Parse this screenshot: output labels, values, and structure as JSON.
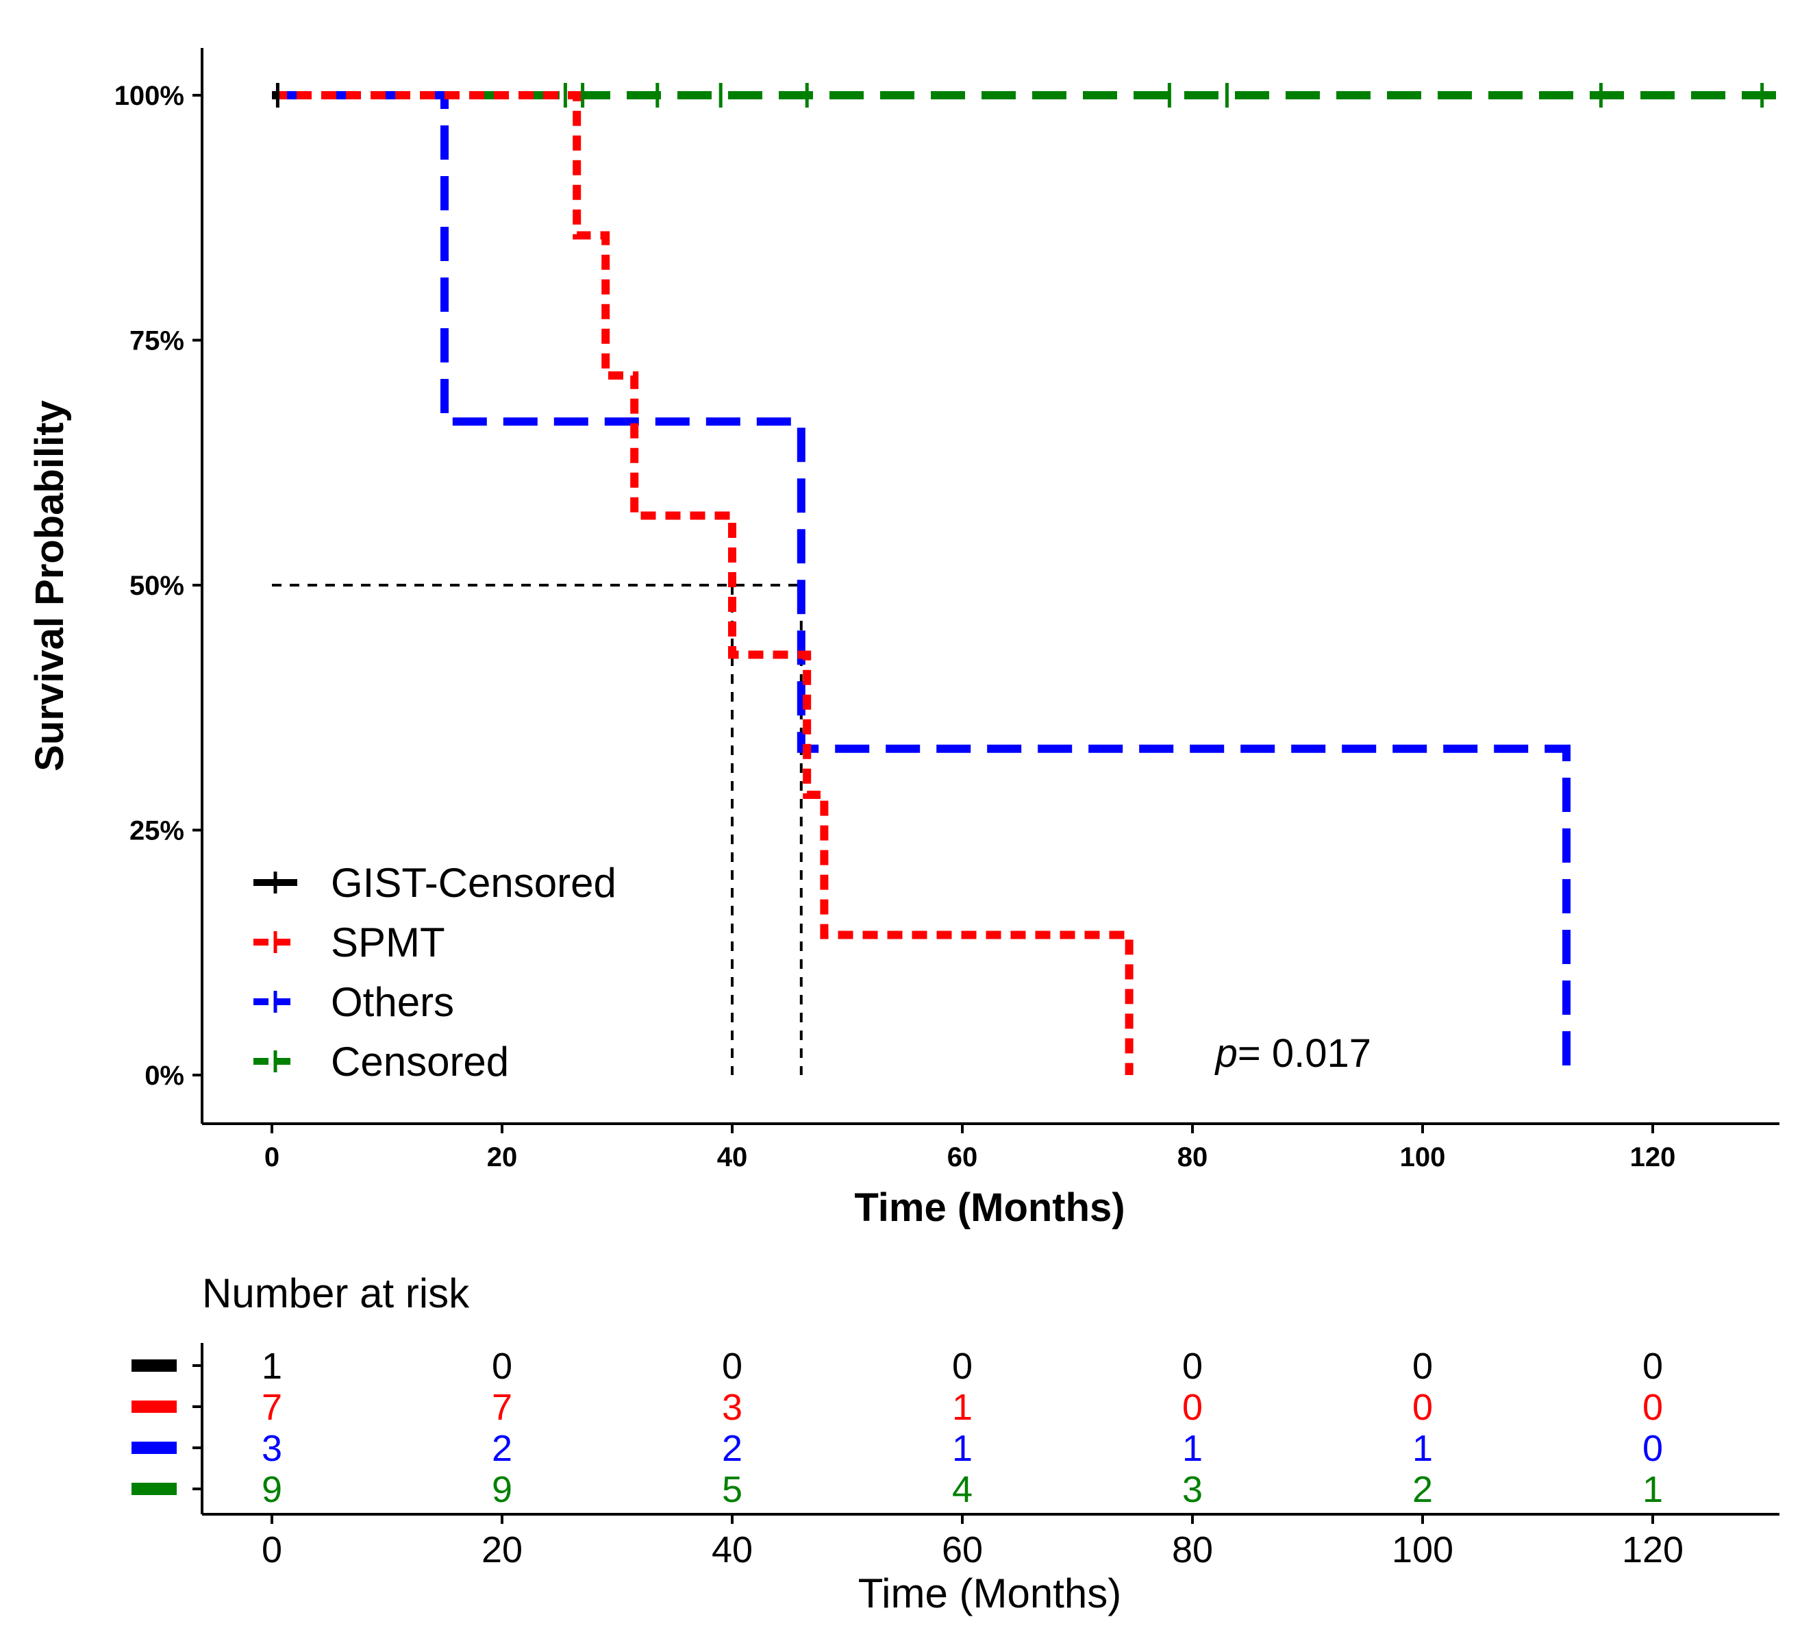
{
  "chart_data": {
    "type": "line",
    "subtype": "kaplan-meier",
    "xlabel": "Time (Months)",
    "ylabel": "Survival Probability",
    "xlim": [
      -6,
      131
    ],
    "ylim": [
      -0.05,
      1.05
    ],
    "x_ticks": [
      0,
      20,
      40,
      60,
      80,
      100,
      120
    ],
    "y_ticks": [
      0,
      0.25,
      0.5,
      0.75,
      1.0
    ],
    "y_tick_labels": [
      "0%",
      "25%",
      "50%",
      "75%",
      "100%"
    ],
    "p_value": {
      "prefix": "p",
      "text": "= 0.017",
      "x": 82,
      "y": 0.02
    },
    "legend_position": "bottom-left",
    "series": [
      {
        "name": "GIST-Censored",
        "color": "#000000",
        "dash": "solid",
        "steps": [
          [
            0,
            1.0
          ],
          [
            0.5,
            1.0
          ]
        ],
        "censor_marks": [
          0.5
        ]
      },
      {
        "name": "SPMT",
        "color": "#ff0000",
        "dash": "short",
        "steps": [
          [
            0,
            1.0
          ],
          [
            26.5,
            1.0
          ],
          [
            26.5,
            0.857
          ],
          [
            29,
            0.857
          ],
          [
            29,
            0.714
          ],
          [
            31.5,
            0.714
          ],
          [
            31.5,
            0.571
          ],
          [
            40,
            0.571
          ],
          [
            40,
            0.429
          ],
          [
            46.5,
            0.429
          ],
          [
            46.5,
            0.286
          ],
          [
            48,
            0.286
          ],
          [
            48,
            0.143
          ],
          [
            74.5,
            0.143
          ],
          [
            74.5,
            0.0
          ]
        ],
        "censor_marks": []
      },
      {
        "name": "Others",
        "color": "#0000ff",
        "dash": "long",
        "steps": [
          [
            0,
            1.0
          ],
          [
            15,
            1.0
          ],
          [
            15,
            0.667
          ],
          [
            46,
            0.667
          ],
          [
            46,
            0.333
          ],
          [
            112.5,
            0.333
          ],
          [
            112.5,
            0.0
          ]
        ],
        "censor_marks": []
      },
      {
        "name": "Censored",
        "color": "#008000",
        "dash": "long",
        "steps": [
          [
            0,
            1.0
          ],
          [
            131,
            1.0
          ]
        ],
        "censor_marks": [
          25.5,
          27,
          33.5,
          39,
          46.5,
          78,
          83,
          115.5,
          129.5
        ]
      }
    ],
    "median_lines": [
      {
        "x": 40,
        "y": 0.5
      },
      {
        "x": 46,
        "y": 0.5
      }
    ],
    "risk_table": {
      "title": "Number at risk",
      "xlabel": "Time (Months)",
      "times": [
        0,
        20,
        40,
        60,
        80,
        100,
        120
      ],
      "rows": [
        {
          "color": "#000000",
          "counts": [
            1,
            0,
            0,
            0,
            0,
            0,
            0
          ]
        },
        {
          "color": "#ff0000",
          "counts": [
            7,
            7,
            3,
            1,
            0,
            0,
            0
          ]
        },
        {
          "color": "#0000ff",
          "counts": [
            3,
            2,
            2,
            1,
            1,
            1,
            0
          ]
        },
        {
          "color": "#008000",
          "counts": [
            9,
            9,
            5,
            4,
            3,
            2,
            1
          ]
        }
      ]
    }
  }
}
